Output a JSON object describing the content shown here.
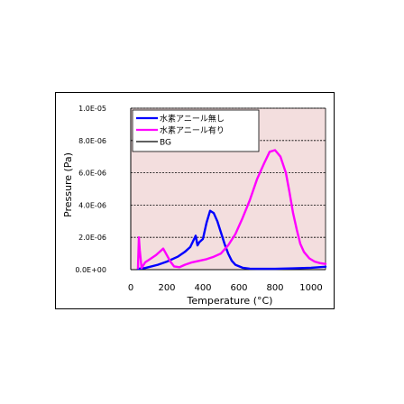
{
  "chart_data": {
    "type": "line",
    "title": "",
    "xlabel": "Temperature (°C)",
    "ylabel": "Pressure (Pa)",
    "xlim": [
      0,
      1080
    ],
    "ylim": [
      0,
      1e-05
    ],
    "xticks": [
      "0",
      "200",
      "400",
      "600",
      "800",
      "1000"
    ],
    "xtick_values": [
      0,
      200,
      400,
      600,
      800,
      1000
    ],
    "yticks": [
      "0.0E+00",
      "2.0E-06",
      "4.0E-06",
      "6.0E-06",
      "8.0E-06",
      "1.0E-05"
    ],
    "ytick_values": [
      0,
      2e-06,
      4e-06,
      6e-06,
      8e-06,
      1e-05
    ],
    "grid": "horizontal dashed",
    "background": "#f3dede",
    "legend_position": "top-left",
    "series": [
      {
        "name": "水素アニール無し",
        "color": "#0000ff",
        "x": [
          40,
          80,
          150,
          200,
          260,
          300,
          330,
          360,
          370,
          380,
          400,
          420,
          440,
          460,
          480,
          500,
          520,
          540,
          560,
          580,
          620,
          660,
          700,
          800,
          900,
          1000,
          1080
        ],
        "y": [
          5e-08,
          1e-07,
          3e-07,
          5e-07,
          8e-07,
          1.1e-06,
          1.4e-06,
          2.1e-06,
          1.5e-06,
          1.7e-06,
          1.9e-06,
          2.9e-06,
          3.65e-06,
          3.5e-06,
          3e-06,
          2.3e-06,
          1.6e-06,
          1e-06,
          5.5e-07,
          3e-07,
          1.2e-07,
          6e-08,
          5e-08,
          5e-08,
          8e-08,
          1.2e-07,
          1.8e-07
        ]
      },
      {
        "name": "水素アニール有り",
        "color": "#ff00ff",
        "x": [
          40,
          45,
          50,
          60,
          80,
          100,
          140,
          180,
          200,
          220,
          240,
          270,
          300,
          340,
          380,
          420,
          460,
          500,
          540,
          580,
          620,
          660,
          700,
          740,
          770,
          800,
          830,
          860,
          880,
          900,
          920,
          940,
          960,
          990,
          1020,
          1050,
          1080
        ],
        "y": [
          1e-07,
          2e-06,
          1.2e-06,
          1e-07,
          4.5e-07,
          6e-07,
          9e-07,
          1.3e-06,
          9e-07,
          5e-07,
          2e-07,
          1.5e-07,
          3e-07,
          4.5e-07,
          5.5e-07,
          6.5e-07,
          8e-07,
          1e-06,
          1.5e-06,
          2.2e-06,
          3.2e-06,
          4.3e-06,
          5.6e-06,
          6.6e-06,
          7.3e-06,
          7.4e-06,
          7e-06,
          6e-06,
          4.8e-06,
          3.5e-06,
          2.5e-06,
          1.6e-06,
          1.1e-06,
          7e-07,
          5e-07,
          4e-07,
          3.5e-07
        ]
      },
      {
        "name": "BG",
        "color": "#000000",
        "x": [],
        "y": []
      }
    ]
  }
}
